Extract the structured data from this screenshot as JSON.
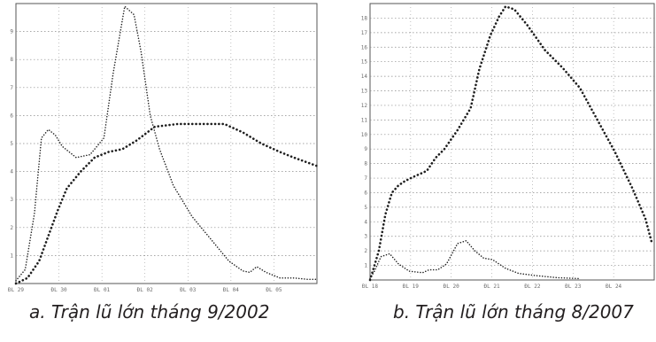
{
  "chart_data": [
    {
      "type": "line",
      "title": "",
      "caption": "a. Trận lũ lớn tháng 9/2002",
      "xlabel": "",
      "ylabel": "",
      "x_tick_labels": [
        "ĐL 29",
        "ĐL 30",
        "ĐL 01",
        "ĐL 02",
        "ĐL 03",
        "ĐL 04",
        "ĐL 05"
      ],
      "y_tick_labels": [
        "1",
        "2",
        "3",
        "4",
        "5",
        "6",
        "7",
        "8",
        "9"
      ],
      "xlim": [
        0,
        6.5
      ],
      "ylim": [
        0,
        10
      ],
      "grid": true,
      "legend": "none",
      "series": [
        {
          "style": "dotted-thin",
          "x": [
            0,
            0.2,
            0.4,
            0.55,
            0.7,
            0.85,
            1.0,
            1.3,
            1.6,
            1.9,
            2.1,
            2.35,
            2.55,
            2.7,
            2.9,
            3.1,
            3.4,
            3.8,
            4.2,
            4.6,
            4.9,
            5.05,
            5.2,
            5.4,
            5.7,
            6.0,
            6.3,
            6.5
          ],
          "y": [
            0.1,
            0.5,
            2.5,
            5.2,
            5.5,
            5.3,
            4.9,
            4.5,
            4.6,
            5.2,
            7.5,
            9.9,
            9.6,
            8.3,
            6.0,
            4.8,
            3.5,
            2.4,
            1.6,
            0.8,
            0.45,
            0.4,
            0.6,
            0.4,
            0.2,
            0.2,
            0.15,
            0.15
          ]
        },
        {
          "style": "dotted-thick",
          "x": [
            0,
            0.25,
            0.5,
            0.7,
            0.9,
            1.1,
            1.4,
            1.7,
            2.0,
            2.3,
            2.6,
            3.0,
            3.5,
            4.0,
            4.5,
            4.9,
            5.3,
            5.7,
            6.0,
            6.5
          ],
          "y": [
            0.0,
            0.2,
            0.8,
            1.7,
            2.6,
            3.4,
            4.0,
            4.5,
            4.7,
            4.8,
            5.1,
            5.6,
            5.7,
            5.7,
            5.7,
            5.4,
            5.0,
            4.7,
            4.5,
            4.2
          ]
        }
      ]
    },
    {
      "type": "line",
      "title": "",
      "caption": "b. Trận lũ lớn tháng 8/2007",
      "xlabel": "",
      "ylabel": "",
      "x_tick_labels": [
        "ĐL 18",
        "ĐL 19",
        "ĐL 20",
        "ĐL 21",
        "ĐL 22",
        "ĐL 23",
        "ĐL 24"
      ],
      "y_tick_labels": [
        "1",
        "2",
        "3",
        "4",
        "5",
        "6",
        "7",
        "8",
        "9",
        "10",
        "11",
        "12",
        "13",
        "14",
        "15",
        "16",
        "17",
        "18"
      ],
      "xlim": [
        0,
        6.5
      ],
      "ylim": [
        0,
        19
      ],
      "grid": true,
      "legend": "none",
      "series": [
        {
          "style": "dotted-thick",
          "x": [
            0,
            0.2,
            0.35,
            0.5,
            0.65,
            0.8,
            1.0,
            1.3,
            1.5,
            1.7,
            2.0,
            2.3,
            2.5,
            2.75,
            2.95,
            3.1,
            3.3,
            3.6,
            4.0,
            4.4,
            4.8,
            5.2,
            5.6,
            6.0,
            6.3,
            6.45
          ],
          "y": [
            0.0,
            2.0,
            4.5,
            6.0,
            6.5,
            6.8,
            7.1,
            7.5,
            8.4,
            9.0,
            10.3,
            11.8,
            14.5,
            16.8,
            18.1,
            18.8,
            18.6,
            17.5,
            15.8,
            14.6,
            13.2,
            11.0,
            8.8,
            6.3,
            4.2,
            2.5
          ]
        },
        {
          "style": "dotted-thin",
          "x": [
            0,
            0.1,
            0.25,
            0.45,
            0.65,
            0.9,
            1.2,
            1.35,
            1.55,
            1.75,
            2.0,
            2.2,
            2.4,
            2.6,
            2.8,
            3.1,
            3.4,
            3.8,
            4.3,
            4.8
          ],
          "y": [
            0.1,
            0.6,
            1.6,
            1.8,
            1.1,
            0.6,
            0.5,
            0.7,
            0.7,
            1.1,
            2.5,
            2.7,
            2.0,
            1.5,
            1.4,
            0.8,
            0.45,
            0.3,
            0.15,
            0.1
          ]
        }
      ]
    }
  ]
}
